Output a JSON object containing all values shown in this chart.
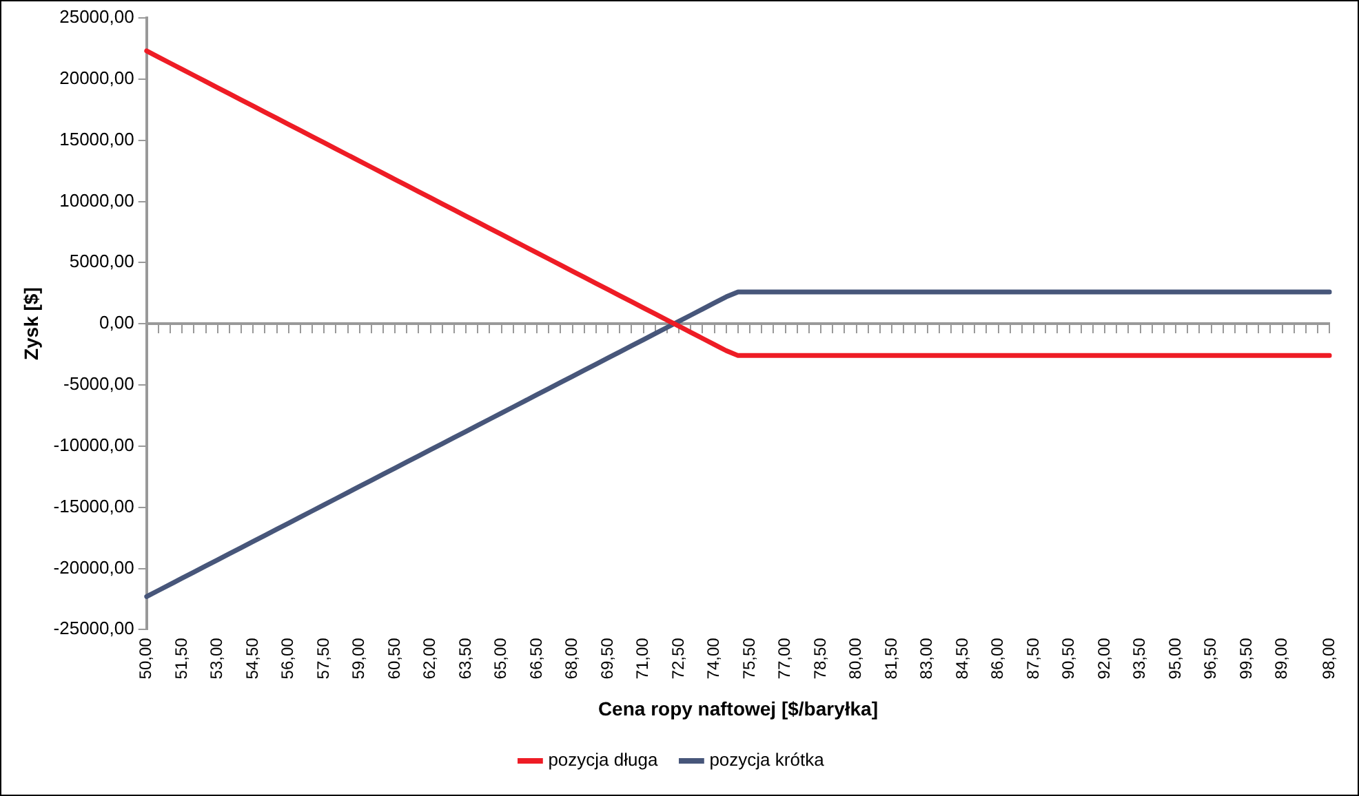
{
  "chart_data": {
    "type": "line",
    "xlabel": "Cena ropy naftowej [$/baryłka]",
    "ylabel": "Zysk [$]",
    "categories": [
      "50,00",
      null,
      null,
      "51,50",
      null,
      null,
      "53,00",
      null,
      null,
      "54,50",
      null,
      null,
      "56,00",
      null,
      null,
      "57,50",
      null,
      null,
      "59,00",
      null,
      null,
      "60,50",
      null,
      null,
      "62,00",
      null,
      null,
      "63,50",
      null,
      null,
      "65,00",
      null,
      null,
      "66,50",
      null,
      null,
      "68,00",
      null,
      null,
      "69,50",
      null,
      null,
      "71,00",
      null,
      null,
      "72,50",
      null,
      null,
      "74,00",
      null,
      null,
      "75,50",
      null,
      null,
      "77,00",
      null,
      null,
      "78,50",
      null,
      null,
      "80,00",
      null,
      null,
      "81,50",
      null,
      null,
      "83,00",
      null,
      null,
      "84,50",
      null,
      null,
      "86,00",
      null,
      null,
      "87,50",
      null,
      null,
      "90,50",
      null,
      null,
      "92,00",
      null,
      null,
      "93,50",
      null,
      null,
      "95,00",
      null,
      null,
      "96,50",
      null,
      null,
      "99,50",
      null,
      null,
      "89,00",
      null,
      null,
      null,
      "98,00"
    ],
    "series": [
      {
        "name": "pozycja długa",
        "color": "#ee1c25",
        "values": [
          22300,
          21800,
          21300,
          20800,
          20300,
          19800,
          19300,
          18800,
          18300,
          17800,
          17300,
          16800,
          16300,
          15800,
          15300,
          14800,
          14300,
          13800,
          13300,
          12800,
          12300,
          11800,
          11300,
          10800,
          10300,
          9800,
          9300,
          8800,
          8300,
          7800,
          7300,
          6800,
          6300,
          5800,
          5300,
          4800,
          4300,
          3800,
          3300,
          2800,
          2300,
          1800,
          1300,
          800,
          300,
          -200,
          -700,
          -1200,
          -1700,
          -2200,
          -2600,
          -2600,
          -2600,
          -2600,
          -2600,
          -2600,
          -2600,
          -2600,
          -2600,
          -2600,
          -2600,
          -2600,
          -2600,
          -2600,
          -2600,
          -2600,
          -2600,
          -2600,
          -2600,
          -2600,
          -2600,
          -2600,
          -2600,
          -2600,
          -2600,
          -2600,
          -2600,
          -2600,
          -2600,
          -2600,
          -2600,
          -2600,
          -2600,
          -2600,
          -2600,
          -2600,
          -2600,
          -2600,
          -2600,
          -2600,
          -2600,
          -2600,
          -2600,
          -2600,
          -2600,
          -2600,
          -2600,
          -2600,
          -2600,
          -2600,
          -2600
        ]
      },
      {
        "name": "pozycja krótka",
        "color": "#47567a",
        "values": [
          -22300,
          -21800,
          -21300,
          -20800,
          -20300,
          -19800,
          -19300,
          -18800,
          -18300,
          -17800,
          -17300,
          -16800,
          -16300,
          -15800,
          -15300,
          -14800,
          -14300,
          -13800,
          -13300,
          -12800,
          -12300,
          -11800,
          -11300,
          -10800,
          -10300,
          -9800,
          -9300,
          -8800,
          -8300,
          -7800,
          -7300,
          -6800,
          -6300,
          -5800,
          -5300,
          -4800,
          -4300,
          -3800,
          -3300,
          -2800,
          -2300,
          -1800,
          -1300,
          -800,
          -300,
          200,
          700,
          1200,
          1700,
          2200,
          2600,
          2600,
          2600,
          2600,
          2600,
          2600,
          2600,
          2600,
          2600,
          2600,
          2600,
          2600,
          2600,
          2600,
          2600,
          2600,
          2600,
          2600,
          2600,
          2600,
          2600,
          2600,
          2600,
          2600,
          2600,
          2600,
          2600,
          2600,
          2600,
          2600,
          2600,
          2600,
          2600,
          2600,
          2600,
          2600,
          2600,
          2600,
          2600,
          2600,
          2600,
          2600,
          2600,
          2600,
          2600,
          2600,
          2600,
          2600,
          2600,
          2600,
          2600
        ]
      }
    ],
    "ylim": [
      -25000,
      25000
    ],
    "yticks": [
      {
        "value": -25000,
        "label": "-25000,00"
      },
      {
        "value": -20000,
        "label": "-20000,00"
      },
      {
        "value": -15000,
        "label": "-15000,00"
      },
      {
        "value": -10000,
        "label": "-10000,00"
      },
      {
        "value": -5000,
        "label": "-5000,00"
      },
      {
        "value": 0,
        "label": "0,00"
      },
      {
        "value": 5000,
        "label": "5000,00"
      },
      {
        "value": 10000,
        "label": "10000,00"
      },
      {
        "value": 15000,
        "label": "15000,00"
      },
      {
        "value": 20000,
        "label": "20000,00"
      },
      {
        "value": 25000,
        "label": "25000,00"
      }
    ],
    "ref_lines": [
      {
        "axis": "y",
        "value": 0,
        "color": "#999999"
      }
    ],
    "grid": false,
    "legend": "bottom",
    "marker": "none",
    "line_style": "solid"
  }
}
